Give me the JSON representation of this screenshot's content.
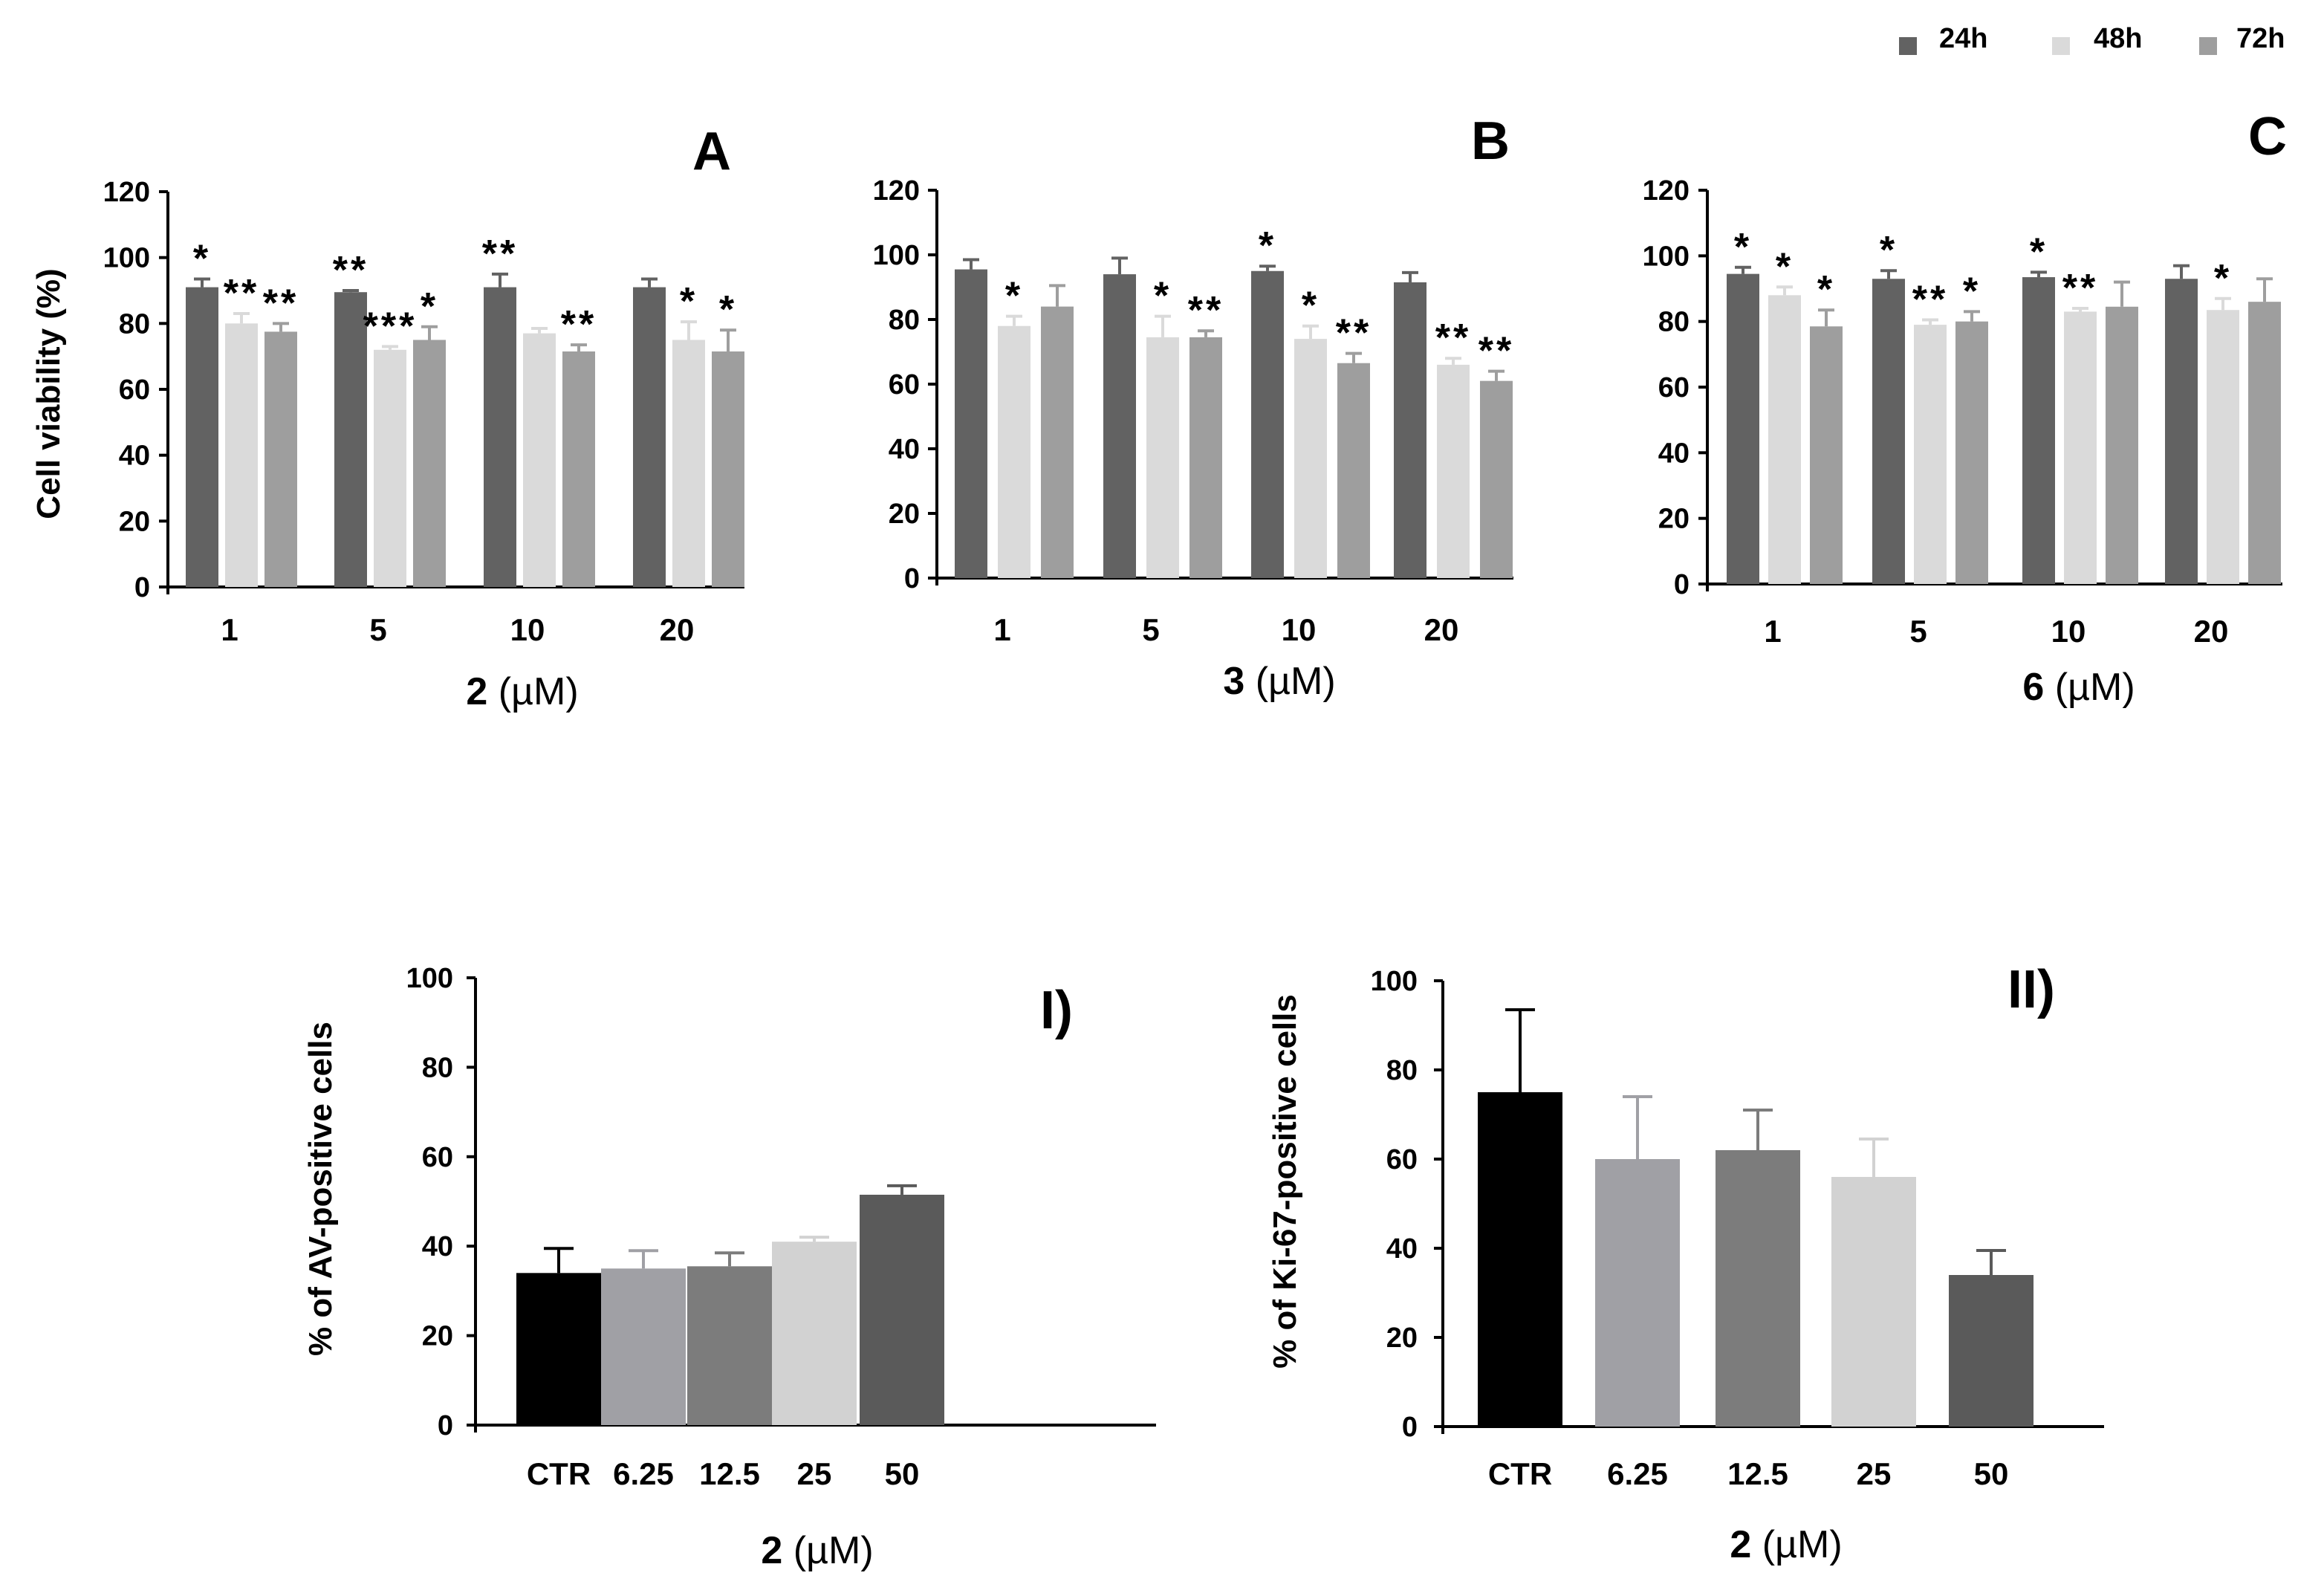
{
  "legend": [
    {
      "label": "24h",
      "color": "#626262"
    },
    {
      "label": "48h",
      "color": "#dadada"
    },
    {
      "label": "72h",
      "color": "#9e9e9e"
    }
  ],
  "chart_data": [
    {
      "type": "bar",
      "panel": "A",
      "categories": [
        "1",
        "5",
        "10",
        "20"
      ],
      "ylabel": "Cell viability (%)",
      "xlabel_compound": "2",
      "xlabel_unit": " (µM)",
      "ylim": [
        0,
        120
      ],
      "yticks": [
        "0",
        "20",
        "40",
        "60",
        "80",
        "100",
        "120"
      ],
      "series": [
        {
          "name": "24h",
          "values": [
            91,
            89.5,
            91,
            91
          ],
          "errors": [
            2.5,
            0.5,
            4,
            2.5
          ],
          "stars": [
            "*",
            "**",
            "**",
            ""
          ]
        },
        {
          "name": "48h",
          "values": [
            80,
            72,
            77,
            75
          ],
          "errors": [
            3,
            1,
            1.5,
            5.5
          ],
          "stars": [
            "**",
            "***",
            "",
            "*"
          ]
        },
        {
          "name": "72h",
          "values": [
            77.5,
            75,
            71.5,
            71.5
          ],
          "errors": [
            2.5,
            4,
            2,
            6.5
          ],
          "stars": [
            "**",
            "*",
            "**",
            "*"
          ]
        }
      ]
    },
    {
      "type": "bar",
      "panel": "B",
      "categories": [
        "1",
        "5",
        "10",
        "20"
      ],
      "ylabel": "",
      "xlabel_compound": "3",
      "xlabel_unit": " (µM)",
      "ylim": [
        0,
        120
      ],
      "yticks": [
        "0",
        "20",
        "40",
        "60",
        "80",
        "100",
        "120"
      ],
      "series": [
        {
          "name": "24h",
          "values": [
            95.5,
            94,
            95,
            91.5
          ],
          "errors": [
            3,
            5,
            1.5,
            3
          ],
          "stars": [
            "",
            "",
            "*",
            ""
          ]
        },
        {
          "name": "48h",
          "values": [
            78,
            74.5,
            74,
            66
          ],
          "errors": [
            3,
            6.5,
            4,
            2
          ],
          "stars": [
            "*",
            "*",
            "*",
            "**"
          ]
        },
        {
          "name": "72h",
          "values": [
            84,
            74.5,
            66.5,
            61
          ],
          "errors": [
            6.5,
            2,
            3,
            3
          ],
          "stars": [
            "",
            "**",
            "**",
            "**"
          ]
        }
      ]
    },
    {
      "type": "bar",
      "panel": "C",
      "categories": [
        "1",
        "5",
        "10",
        "20"
      ],
      "ylabel": "",
      "xlabel_compound": "6",
      "xlabel_unit": " (µM)",
      "ylim": [
        0,
        120
      ],
      "yticks": [
        "0",
        "20",
        "40",
        "60",
        "80",
        "100",
        "120"
      ],
      "series": [
        {
          "name": "24h",
          "values": [
            94.5,
            93,
            93.5,
            93
          ],
          "errors": [
            2,
            2.5,
            1.5,
            4
          ],
          "stars": [
            "*",
            "*",
            "*",
            ""
          ]
        },
        {
          "name": "48h",
          "values": [
            88,
            79,
            83,
            83.5
          ],
          "errors": [
            2.5,
            1.5,
            1,
            3.5
          ],
          "stars": [
            "*",
            "**",
            "**",
            "*"
          ]
        },
        {
          "name": "72h",
          "values": [
            78.5,
            80,
            84.5,
            86
          ],
          "errors": [
            5,
            3,
            7.5,
            7
          ],
          "stars": [
            "*",
            "*",
            "",
            ""
          ]
        }
      ]
    },
    {
      "type": "bar",
      "panel": "I)",
      "categories": [
        "CTR",
        "6.25",
        "12.5",
        "25",
        "50"
      ],
      "ylabel": "% of AV-positive cells",
      "xlabel_compound": "2",
      "xlabel_unit": " (µM)",
      "ylim": [
        0,
        100
      ],
      "yticks": [
        "0",
        "20",
        "40",
        "60",
        "80",
        "100"
      ],
      "values": [
        34,
        35,
        35.5,
        41,
        51.5
      ],
      "errors": [
        5.5,
        4,
        3,
        1,
        2
      ],
      "colors": [
        "#000000",
        "#a0a0a5",
        "#7c7c7c",
        "#d2d2d2",
        "#5a5a5a"
      ]
    },
    {
      "type": "bar",
      "panel": "II)",
      "categories": [
        "CTR",
        "6.25",
        "12.5",
        "25",
        "50"
      ],
      "ylabel": "% of Ki-67-positive cells",
      "xlabel_compound": "2",
      "xlabel_unit": " (µM)",
      "ylim": [
        0,
        100
      ],
      "yticks": [
        "0",
        "20",
        "40",
        "60",
        "80",
        "100"
      ],
      "values": [
        75,
        60,
        62,
        56,
        34
      ],
      "errors": [
        18.5,
        14,
        9,
        8.5,
        5.5
      ],
      "colors": [
        "#000000",
        "#a0a0a5",
        "#7c7c7c",
        "#d2d2d2",
        "#5a5a5a"
      ]
    }
  ]
}
